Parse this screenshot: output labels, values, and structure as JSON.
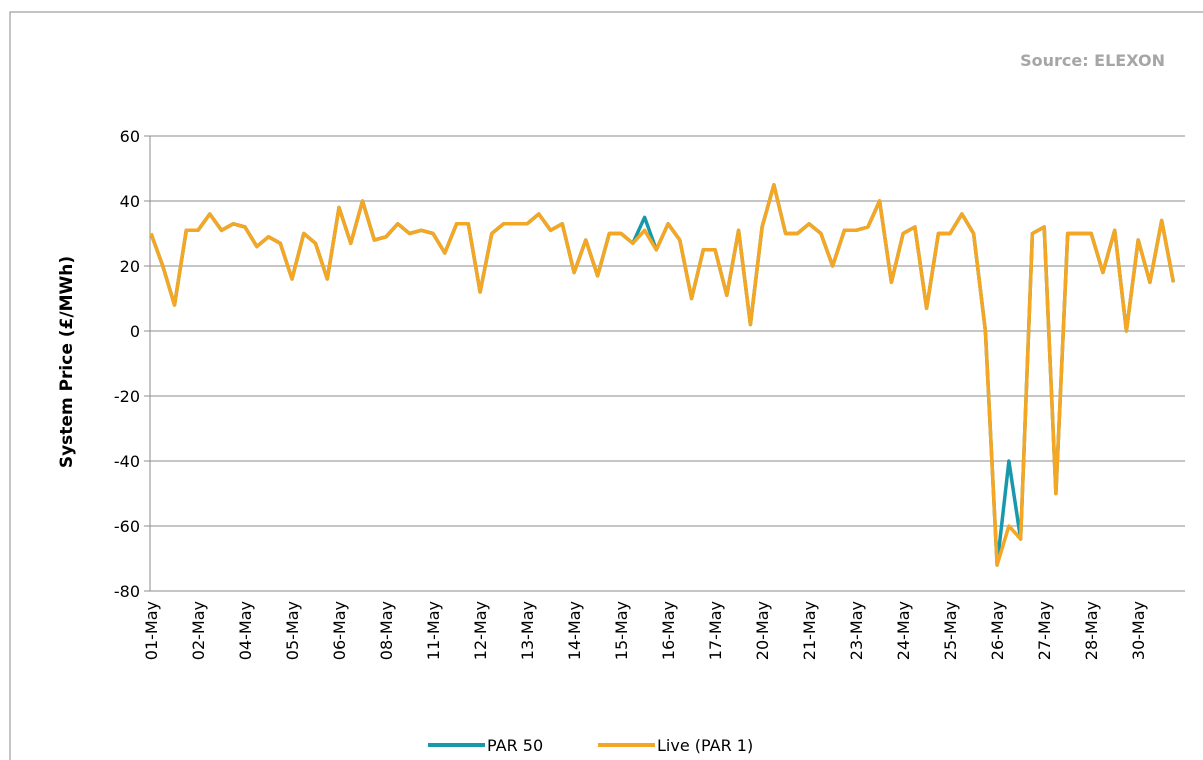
{
  "chart_data": {
    "type": "line",
    "annotation": "Source: ELEXON",
    "y_label": "System Price (£/MWh)",
    "categories": [
      "01-May",
      null,
      null,
      null,
      "02-May",
      null,
      null,
      null,
      "04-May",
      null,
      null,
      null,
      "05-May",
      null,
      null,
      null,
      "06-May",
      null,
      null,
      null,
      "08-May",
      null,
      null,
      null,
      "11-May",
      null,
      null,
      null,
      "12-May",
      null,
      null,
      null,
      "13-May",
      null,
      null,
      null,
      "14-May",
      null,
      null,
      null,
      "15-May",
      null,
      null,
      null,
      "16-May",
      null,
      null,
      null,
      "17-May",
      null,
      null,
      null,
      "20-May",
      null,
      null,
      null,
      "21-May",
      null,
      null,
      null,
      "23-May",
      null,
      null,
      null,
      "24-May",
      null,
      null,
      null,
      "25-May",
      null,
      null,
      null,
      "26-May",
      null,
      null,
      null,
      "27-May",
      null,
      null,
      null,
      "28-May",
      null,
      null,
      null,
      "30-May",
      null,
      null,
      null
    ],
    "series": [
      {
        "name": "PAR 50",
        "color": "#1899ab",
        "values": [
          30,
          20,
          8,
          31,
          31,
          36,
          31,
          33,
          32,
          26,
          29,
          27,
          16,
          30,
          27,
          16,
          38,
          27,
          40,
          28,
          29,
          33,
          30,
          31,
          30,
          24,
          33,
          33,
          12,
          30,
          33,
          33,
          33,
          36,
          31,
          33,
          18,
          28,
          17,
          30,
          30,
          27,
          35,
          25,
          33,
          28,
          10,
          25,
          25,
          11,
          31,
          2,
          32,
          45,
          30,
          30,
          33,
          30,
          20,
          31,
          31,
          32,
          40,
          15,
          30,
          32,
          7,
          30,
          30,
          36,
          30,
          0,
          -72,
          -40,
          -64,
          30,
          32,
          -50,
          30,
          30,
          30,
          18,
          31,
          0,
          28,
          15,
          34,
          15
        ]
      },
      {
        "name": "Live (PAR 1)",
        "color": "#f5a623",
        "values": [
          30,
          20,
          8,
          31,
          31,
          36,
          31,
          33,
          32,
          26,
          29,
          27,
          16,
          30,
          27,
          16,
          38,
          27,
          40,
          28,
          29,
          33,
          30,
          31,
          30,
          24,
          33,
          33,
          12,
          30,
          33,
          33,
          33,
          36,
          31,
          33,
          18,
          28,
          17,
          30,
          30,
          27,
          31,
          25,
          33,
          28,
          10,
          25,
          25,
          11,
          31,
          2,
          32,
          45,
          30,
          30,
          33,
          30,
          20,
          31,
          31,
          32,
          40,
          15,
          30,
          32,
          7,
          30,
          30,
          36,
          30,
          0,
          -72,
          -60,
          -64,
          30,
          32,
          -50,
          30,
          30,
          30,
          18,
          31,
          0,
          28,
          15,
          34,
          15
        ]
      }
    ],
    "ylim": [
      -80,
      60
    ],
    "yticks": [
      -80,
      -60,
      -40,
      -20,
      0,
      20,
      40,
      60
    ],
    "grid": true,
    "legend": "bottom"
  }
}
